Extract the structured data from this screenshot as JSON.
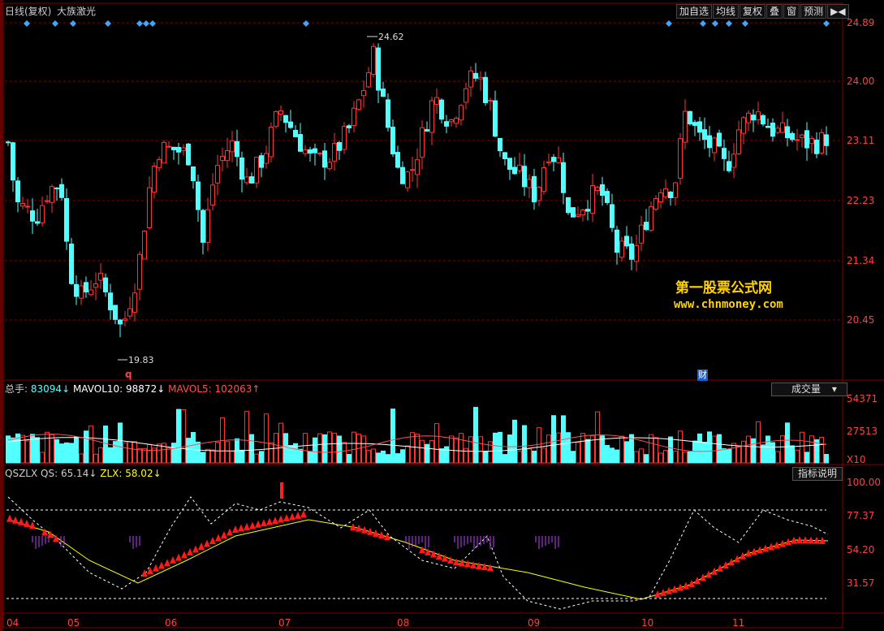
{
  "header": {
    "chart_mode": "日线(复权)",
    "stock_name": "大族激光"
  },
  "toolbar": {
    "buttons": [
      "加自选",
      "均线",
      "复权",
      "叠",
      "窗",
      "预测"
    ],
    "arrows": "▶◀"
  },
  "price_axis": {
    "ticks": [
      "24.89",
      "24.00",
      "23.11",
      "22.23",
      "21.34",
      "20.45"
    ]
  },
  "annotations": {
    "high_label": "24.62",
    "low_label": "19.83",
    "q_marker": "q",
    "cai_marker": "财"
  },
  "volume_panel": {
    "label_total": "总手:",
    "total_value": "83094",
    "label_ma10": "MAVOL10:",
    "ma10_value": "98872",
    "label_ma5": "MAVOL5:",
    "ma5_value": "102063",
    "down_arrow": "↓",
    "up_arrow": "↑",
    "dropdown_label": "成交量",
    "ticks": [
      "54371",
      "27513"
    ],
    "unit": "X10"
  },
  "indicator_panel": {
    "name": "QSZLX",
    "qs_label": "QS:",
    "qs_value": "65.14",
    "zlx_label": "ZLX:",
    "zlx_value": "58.02",
    "down_arrow": "↓",
    "explain_button": "指标说明",
    "ticks": [
      "100.00",
      "77.37",
      "54.20",
      "31.57"
    ]
  },
  "date_axis": {
    "labels": [
      "04",
      "05",
      "06",
      "07",
      "08",
      "09",
      "10",
      "11"
    ]
  },
  "watermark": {
    "line1": "第一股票公式网",
    "line2": "www.chnmoney.com"
  },
  "colors": {
    "up": "#ff3232",
    "down": "#54ffff",
    "grid": "#800000",
    "ma_white": "#ffffff",
    "ma_yellow": "#ffff00",
    "marker_blue": "#3fa5ff"
  }
}
